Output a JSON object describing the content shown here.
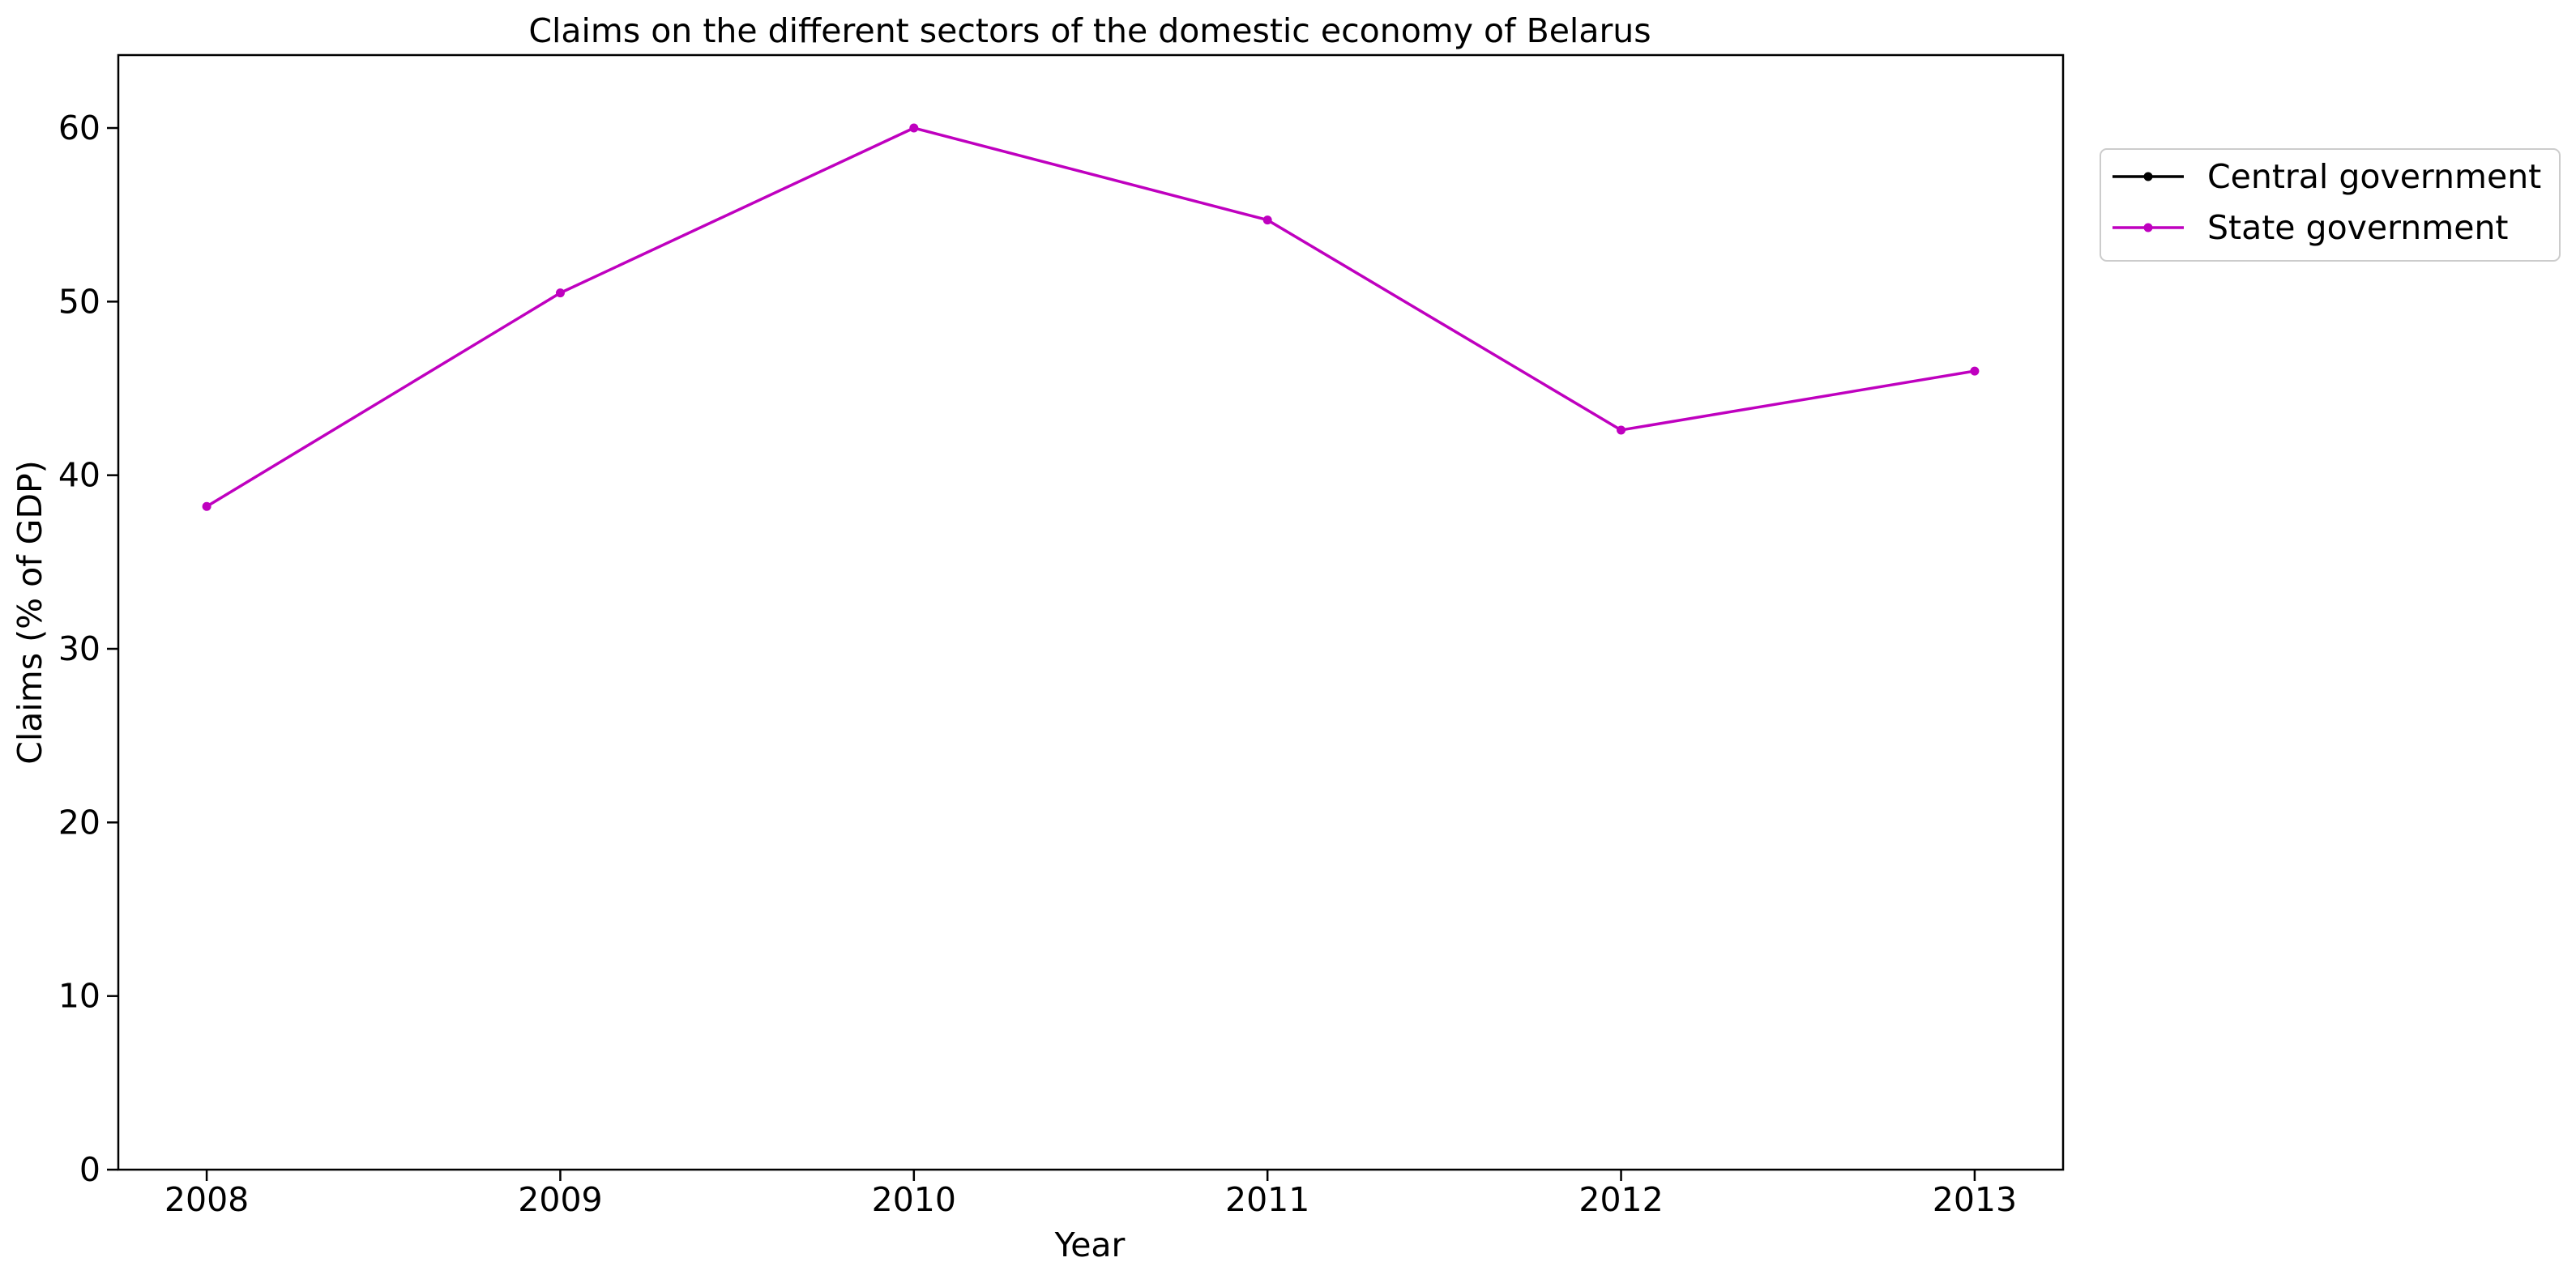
{
  "chart_data": {
    "type": "line",
    "title": "Claims on the different sectors of the domestic economy of Belarus",
    "xlabel": "Year",
    "ylabel": "Claims (% of GDP)",
    "x": [
      2008,
      2009,
      2010,
      2011,
      2012,
      2013
    ],
    "x_tick_labels": [
      "2008",
      "2009",
      "2010",
      "2011",
      "2012",
      "2013"
    ],
    "ylim": [
      0,
      64.2
    ],
    "y_ticks": [
      0,
      10,
      20,
      30,
      40,
      50,
      60
    ],
    "y_tick_labels": [
      "0",
      "10",
      "20",
      "30",
      "40",
      "50",
      "60"
    ],
    "grid": false,
    "legend_position": "outside-top-right",
    "series": [
      {
        "name": "Central government",
        "color": "#000000",
        "marker": "dot",
        "values": [
          null,
          null,
          null,
          null,
          null,
          null
        ]
      },
      {
        "name": "State government",
        "color": "#bf00bf",
        "marker": "dot",
        "values": [
          38.2,
          50.5,
          60.0,
          54.7,
          42.6,
          46.0
        ]
      }
    ]
  }
}
